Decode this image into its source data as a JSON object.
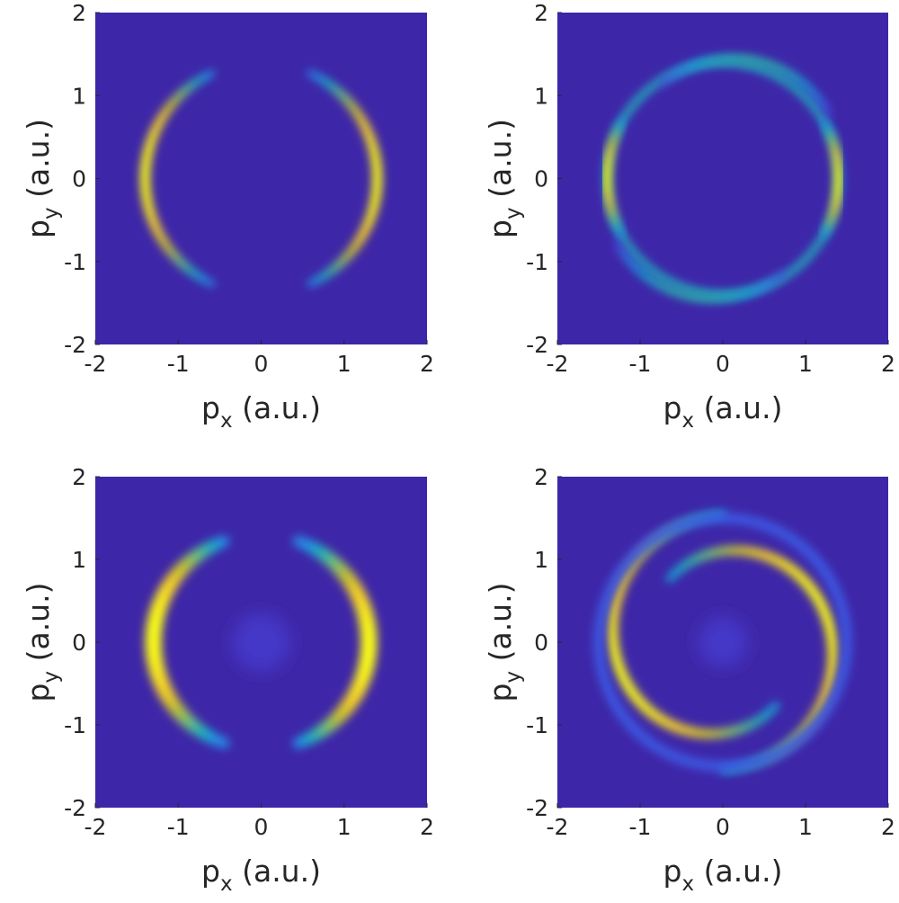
{
  "colors": {
    "background": "#3e26a8",
    "colormap": [
      "#3e26a8",
      "#4743e0",
      "#2e7ff0",
      "#16a6d7",
      "#2ab9aa",
      "#77c56f",
      "#c7c12e",
      "#f7d026",
      "#f9fb15"
    ]
  },
  "chart_data": [
    {
      "type": "heatmap",
      "panel": "top-left",
      "xlabel": {
        "main": "p",
        "sub": "x",
        "unit": " (a.u.)"
      },
      "ylabel": {
        "main": "p",
        "sub": "y",
        "unit": " (a.u.)"
      },
      "xlim": [
        -2,
        2
      ],
      "ylim": [
        -2,
        2
      ],
      "xticks": [
        -2,
        -1,
        0,
        1,
        2
      ],
      "yticks": [
        -2,
        -1,
        0,
        1,
        2
      ],
      "xtick_labels": [
        "-2",
        "-1",
        "0",
        "1",
        "2"
      ],
      "ytick_labels": [
        "-2",
        "-1",
        "0",
        "1",
        "2"
      ],
      "features": [
        {
          "kind": "arc",
          "center": [
            0,
            0
          ],
          "radius": 1.4,
          "from_deg": -65,
          "to_deg": 65,
          "peak_deg": 0,
          "width": 0.12,
          "intensity": 1.0
        },
        {
          "kind": "arc",
          "center": [
            0,
            0
          ],
          "radius": 1.4,
          "from_deg": 115,
          "to_deg": 245,
          "peak_deg": 180,
          "width": 0.12,
          "intensity": 1.0
        }
      ]
    },
    {
      "type": "heatmap",
      "panel": "top-right",
      "xlabel": {
        "main": "p",
        "sub": "x",
        "unit": " (a.u.)"
      },
      "ylabel": {
        "main": "p",
        "sub": "y",
        "unit": " (a.u.)"
      },
      "xlim": [
        -2,
        2
      ],
      "ylim": [
        -2,
        2
      ],
      "xticks": [
        -2,
        -1,
        0,
        1,
        2
      ],
      "yticks": [
        -2,
        -1,
        0,
        1,
        2
      ],
      "xtick_labels": [
        "-2",
        "-1",
        "0",
        "1",
        "2"
      ],
      "ytick_labels": [
        "-2",
        "-1",
        "0",
        "1",
        "2"
      ],
      "features": [
        {
          "kind": "ring",
          "center": [
            0,
            0
          ],
          "radius": 1.4,
          "width": 0.09,
          "intensity": 0.45
        },
        {
          "kind": "arc",
          "center": [
            0,
            0
          ],
          "radius": 1.4,
          "from_deg": -30,
          "to_deg": 30,
          "peak_deg": 0,
          "width": 0.1,
          "intensity": 1.0
        },
        {
          "kind": "arc",
          "center": [
            0,
            0
          ],
          "radius": 1.4,
          "from_deg": 150,
          "to_deg": 210,
          "peak_deg": 180,
          "width": 0.1,
          "intensity": 1.0
        },
        {
          "kind": "arc",
          "center": [
            0.12,
            0.1
          ],
          "radius": 1.35,
          "from_deg": 30,
          "to_deg": 130,
          "peak_deg": 80,
          "width": 0.09,
          "intensity": 0.5
        },
        {
          "kind": "arc",
          "center": [
            -0.12,
            -0.1
          ],
          "radius": 1.35,
          "from_deg": 210,
          "to_deg": 310,
          "peak_deg": 260,
          "width": 0.09,
          "intensity": 0.5
        }
      ]
    },
    {
      "type": "heatmap",
      "panel": "bottom-left",
      "xlabel": {
        "main": "p",
        "sub": "x",
        "unit": " (a.u.)"
      },
      "ylabel": {
        "main": "p",
        "sub": "y",
        "unit": " (a.u.)"
      },
      "xlim": [
        -2,
        2
      ],
      "ylim": [
        -2,
        2
      ],
      "xticks": [
        -2,
        -1,
        0,
        1,
        2
      ],
      "yticks": [
        -2,
        -1,
        0,
        1,
        2
      ],
      "xtick_labels": [
        "-2",
        "-1",
        "0",
        "1",
        "2"
      ],
      "ytick_labels": [
        "-2",
        "-1",
        "0",
        "1",
        "2"
      ],
      "features": [
        {
          "kind": "arc",
          "center": [
            0,
            0
          ],
          "radius": 1.3,
          "from_deg": -70,
          "to_deg": 70,
          "peak_deg": 0,
          "width": 0.2,
          "intensity": 1.0
        },
        {
          "kind": "arc",
          "center": [
            0,
            0
          ],
          "radius": 1.3,
          "from_deg": 110,
          "to_deg": 250,
          "peak_deg": 180,
          "width": 0.2,
          "intensity": 1.0
        },
        {
          "kind": "blob",
          "center": [
            0,
            0
          ],
          "radius": 0.35,
          "intensity": 0.12
        }
      ]
    },
    {
      "type": "heatmap",
      "panel": "bottom-right",
      "xlabel": {
        "main": "p",
        "sub": "x",
        "unit": " (a.u.)"
      },
      "ylabel": {
        "main": "p",
        "sub": "y",
        "unit": " (a.u.)"
      },
      "xlim": [
        -2,
        2
      ],
      "ylim": [
        -2,
        2
      ],
      "xticks": [
        -2,
        -1,
        0,
        1,
        2
      ],
      "yticks": [
        -2,
        -1,
        0,
        1,
        2
      ],
      "xtick_labels": [
        "-2",
        "-1",
        "0",
        "1",
        "2"
      ],
      "ytick_labels": [
        "-2",
        "-1",
        "0",
        "1",
        "2"
      ],
      "features": [
        {
          "kind": "spiral",
          "center": [
            0,
            0
          ],
          "r_start": 1.55,
          "r_end": 1.0,
          "from_deg": -90,
          "to_deg": 130,
          "width": 0.13,
          "intensity": 1.0
        },
        {
          "kind": "spiral",
          "center": [
            0,
            0
          ],
          "r_start": 1.55,
          "r_end": 1.0,
          "from_deg": 90,
          "to_deg": 310,
          "width": 0.13,
          "intensity": 1.0
        },
        {
          "kind": "ring",
          "center": [
            0,
            0
          ],
          "radius": 1.5,
          "width": 0.12,
          "intensity": 0.18
        },
        {
          "kind": "blob",
          "center": [
            0,
            0
          ],
          "radius": 0.3,
          "intensity": 0.12
        }
      ]
    }
  ]
}
